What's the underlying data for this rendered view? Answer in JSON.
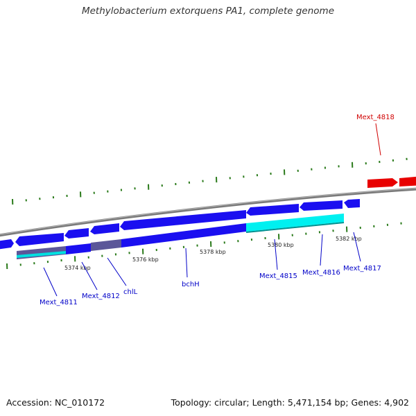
{
  "title": "Methylobacterium extorquens PA1, complete genome",
  "footer": {
    "accession": "Accession: NC_010172",
    "summary": "Topology: circular; Length: 5,471,154 bp; Genes: 4,902"
  },
  "colors": {
    "gene": "#1a0ff0",
    "gene_highlight": "#00f0f0",
    "gene_gray": "#5b5799",
    "gene_red": "#e80000",
    "label_blue": "#0000c8",
    "label_red": "#d00000",
    "tick_green": "#2a7a1a",
    "backbone": "#808080"
  },
  "scale_labels": [
    "5374 kbp",
    "5376 kbp",
    "5378 kbp",
    "5380 kbp",
    "5382 kbp"
  ],
  "gene_labels": [
    {
      "name": "Mext_4811",
      "color": "blue"
    },
    {
      "name": "Mext_4812",
      "color": "blue"
    },
    {
      "name": "chlL",
      "color": "blue"
    },
    {
      "name": "bchH",
      "color": "blue"
    },
    {
      "name": "Mext_4815",
      "color": "blue"
    },
    {
      "name": "Mext_4816",
      "color": "blue"
    },
    {
      "name": "Mext_4817",
      "color": "blue"
    },
    {
      "name": "Mext_4818",
      "color": "red"
    }
  ]
}
